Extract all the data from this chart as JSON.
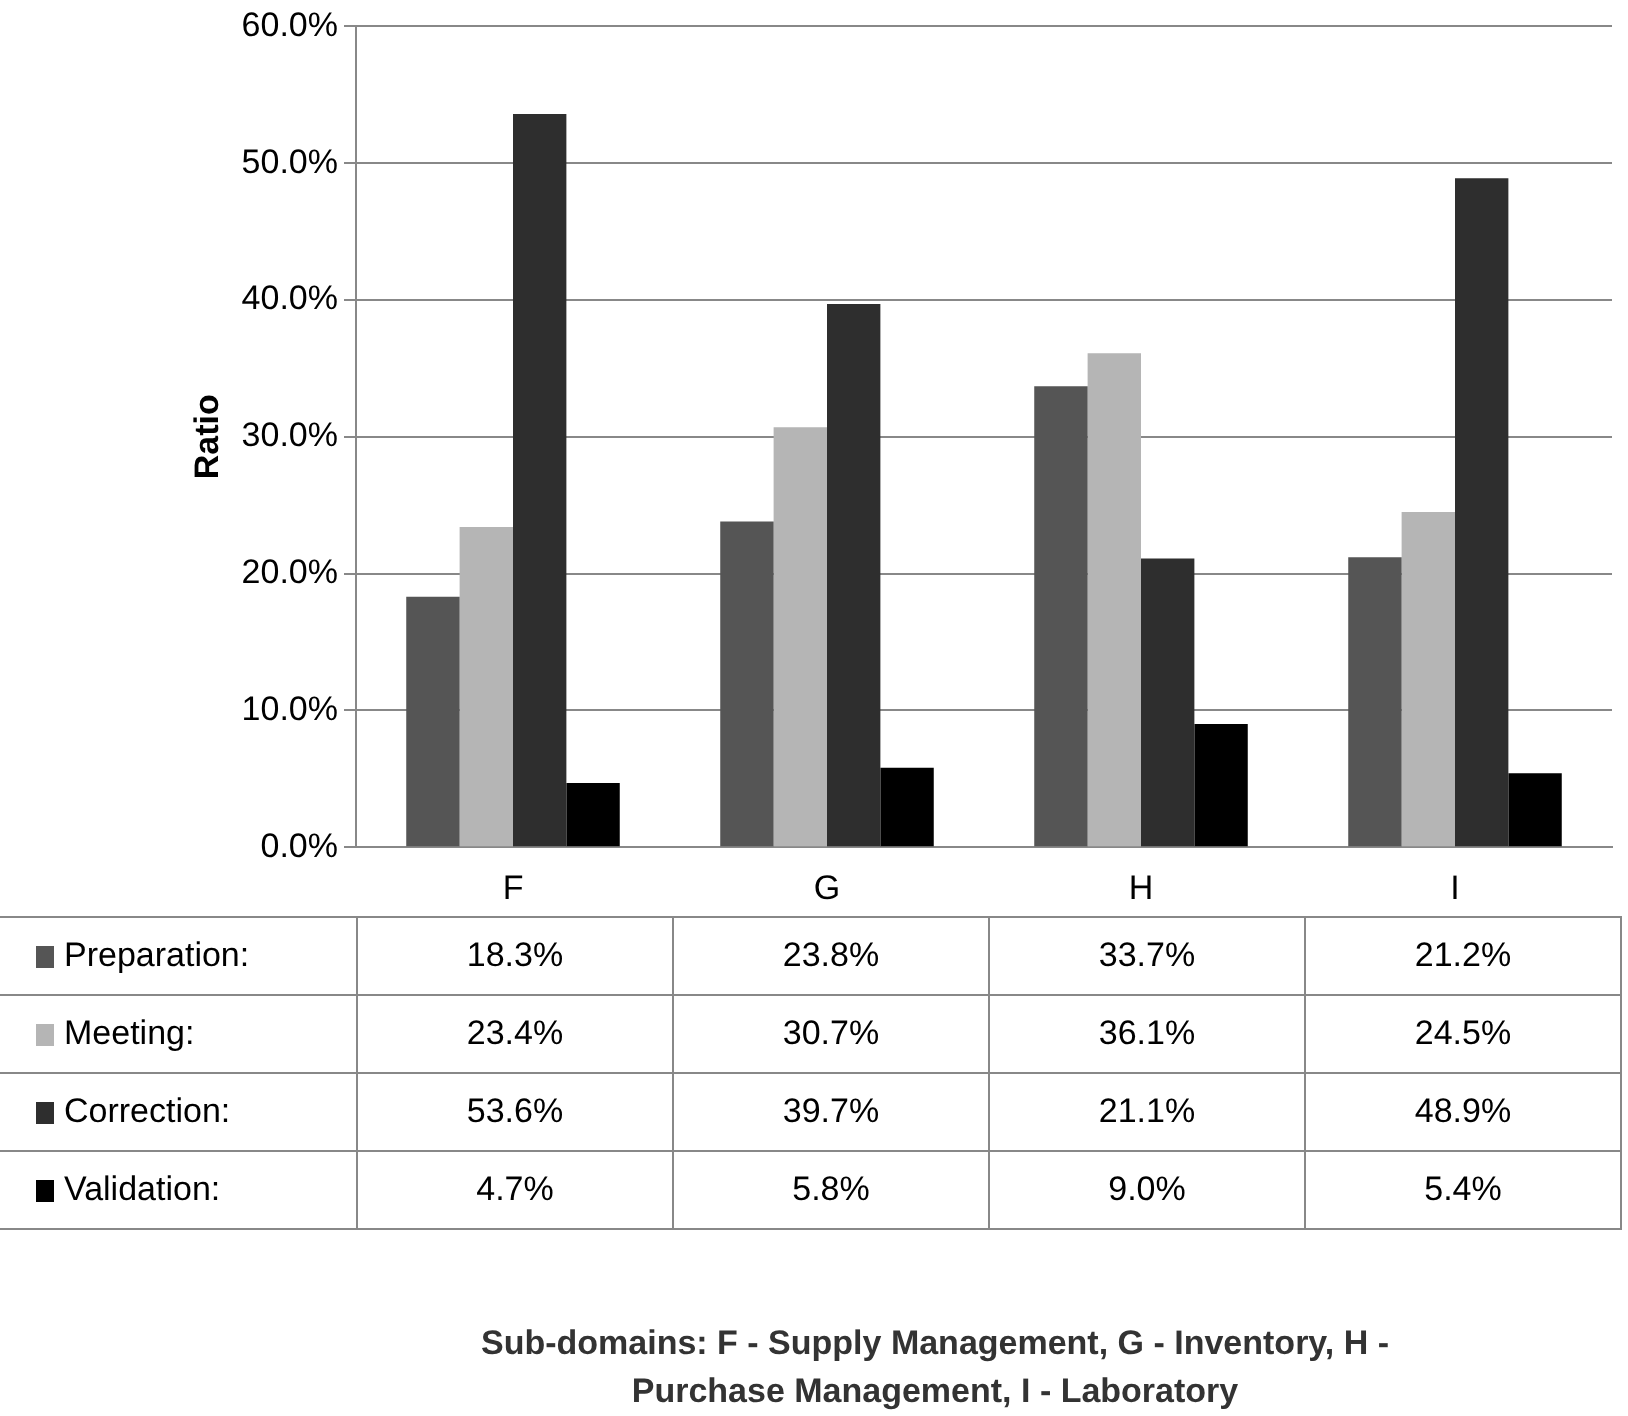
{
  "chart_data": {
    "type": "bar",
    "ylabel": "Ratio",
    "categories": [
      "F",
      "G",
      "H",
      "I"
    ],
    "series": [
      {
        "name": "Preparation:",
        "color": "#555555",
        "values": [
          18.3,
          23.8,
          33.7,
          21.2
        ],
        "value_labels": [
          "18.3%",
          "23.8%",
          "33.7%",
          "21.2%"
        ]
      },
      {
        "name": "Meeting:",
        "color": "#b5b5b5",
        "values": [
          23.4,
          30.7,
          36.1,
          24.5
        ],
        "value_labels": [
          "23.4%",
          "30.7%",
          "36.1%",
          "24.5%"
        ]
      },
      {
        "name": "Correction:",
        "color": "#2e2e2e",
        "values": [
          53.6,
          39.7,
          21.1,
          48.9
        ],
        "value_labels": [
          "53.6%",
          "39.7%",
          "21.1%",
          "48.9%"
        ]
      },
      {
        "name": "Validation:",
        "color": "#000000",
        "values": [
          4.7,
          5.8,
          9.0,
          5.4
        ],
        "value_labels": [
          "4.7%",
          "5.8%",
          "9.0%",
          "5.4%"
        ]
      }
    ],
    "ylim": [
      0,
      60
    ],
    "yticks": [
      {
        "value": 0,
        "label": "0.0%"
      },
      {
        "value": 10,
        "label": "10.0%"
      },
      {
        "value": 20,
        "label": "20.0%"
      },
      {
        "value": 30,
        "label": "30.0%"
      },
      {
        "value": 40,
        "label": "40.0%"
      },
      {
        "value": 50,
        "label": "50.0%"
      },
      {
        "value": 60,
        "label": "60.0%"
      }
    ],
    "grid": "y",
    "legend": "bottom",
    "annotations": [
      "Sub-domains: F - Supply Management, G - Inventory, H - Purchase Management, I - Laboratory"
    ]
  }
}
